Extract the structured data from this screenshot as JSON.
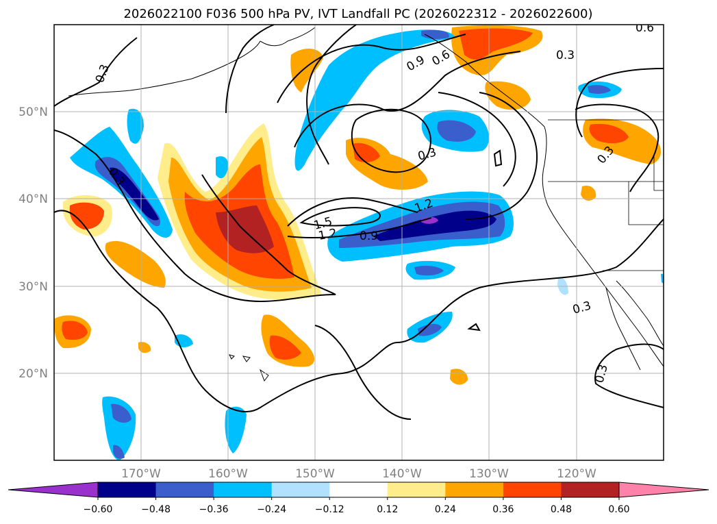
{
  "title": "2026022100 F036 500 hPa PV, IVT Landfall PC (2026022312 - 2026022600)",
  "map": {
    "projection": "PlateCarree",
    "lon_range": [
      -180,
      -110
    ],
    "lat_range": [
      10,
      60
    ],
    "grid": true,
    "lat_ticks": [
      {
        "lat": 20,
        "label": "20°N"
      },
      {
        "lat": 30,
        "label": "30°N"
      },
      {
        "lat": 40,
        "label": "40°N"
      },
      {
        "lat": 50,
        "label": "50°N"
      }
    ],
    "lon_ticks": [
      {
        "lon": -170,
        "label": "170°W"
      },
      {
        "lon": -160,
        "label": "160°W"
      },
      {
        "lon": -150,
        "label": "150°W"
      },
      {
        "lon": -140,
        "label": "140°W"
      },
      {
        "lon": -130,
        "label": "130°W"
      },
      {
        "lon": -120,
        "label": "120°W"
      }
    ],
    "contour_labels": [
      "0.3",
      "0.3",
      "0.3",
      "0.3",
      "0.3",
      "0.3",
      "0.6",
      "0.6",
      "0.9",
      "0.9",
      "1.2",
      "1.2",
      "1.5",
      "0.3"
    ]
  },
  "colorbar": {
    "orientation": "horizontal",
    "extend": "both",
    "ticks": [
      "−0.60",
      "−0.48",
      "−0.36",
      "−0.24",
      "−0.12",
      "0.12",
      "0.24",
      "0.36",
      "0.48",
      "0.60"
    ],
    "colors": [
      "#9932cc",
      "#00008b",
      "#3a5fcd",
      "#00bfff",
      "#b0e2ff",
      "#ffffff",
      "#ffec8b",
      "#ffa500",
      "#ff4500",
      "#b22222",
      "#ff82ab"
    ]
  }
}
